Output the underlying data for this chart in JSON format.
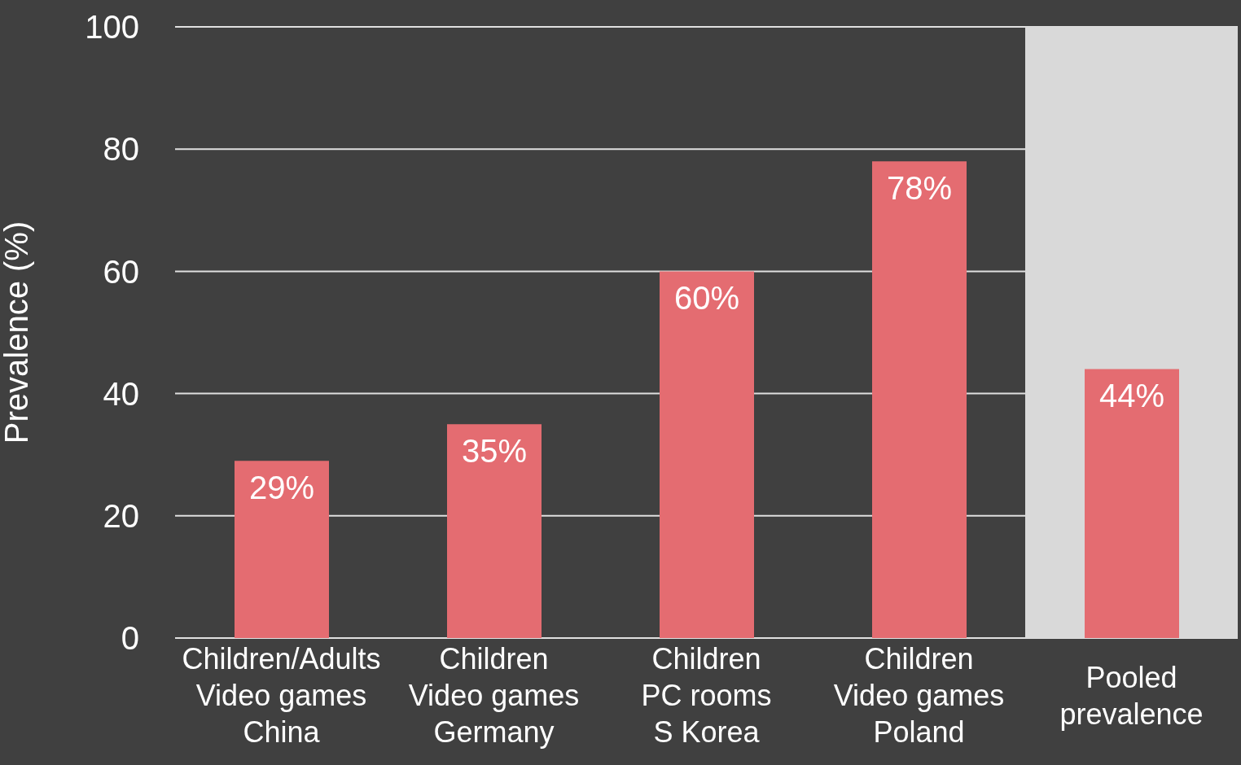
{
  "chart_data": {
    "type": "bar",
    "ylabel": "Prevalence (%)",
    "categories": [
      "Children/Adults\nVideo games\nChina",
      "Children\nVideo games\nGermany",
      "Children\nPC rooms\nS Korea",
      "Children\nVideo games\nPoland",
      "Pooled prevalence"
    ],
    "values": [
      29,
      35,
      60,
      78,
      44
    ],
    "color": "#e46c71",
    "value_labels": [
      "29%",
      "35%",
      "60%",
      "78%",
      "44%"
    ],
    "ylim": [
      0,
      100
    ],
    "yticks": [
      0,
      20,
      40,
      60,
      80,
      100
    ],
    "grid": "y",
    "bands": [
      {
        "axis": "x",
        "from": "Pooled prevalence",
        "to": "Pooled prevalence",
        "color": "#d9d9d9"
      }
    ]
  }
}
